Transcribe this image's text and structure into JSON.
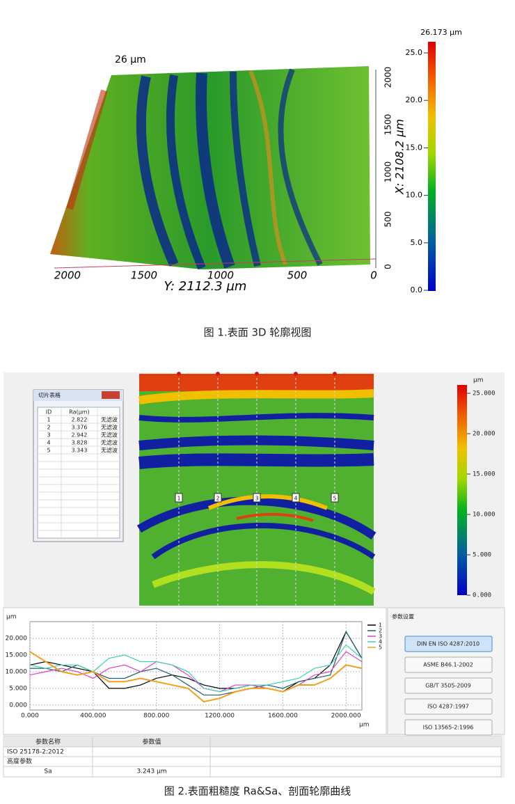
{
  "figure1": {
    "surface_labels": {
      "z_max": "26 µm",
      "y_axis_title": "Y: 2112.3 µm",
      "x_axis_title": "X: 2108.2 µm",
      "y_ticks": [
        "2000",
        "1500",
        "1000",
        "500",
        "0"
      ],
      "x_ticks": [
        "0",
        "500",
        "1000",
        "1500",
        "2000"
      ]
    },
    "colorbar": {
      "max_label": "26.173 µm",
      "ticks": [
        "0.0",
        "5.0",
        "10.0",
        "15.0",
        "20.0",
        "25.0"
      ]
    },
    "caption": "图 1.表面 3D 轮廓视图"
  },
  "figure2": {
    "slice_table": {
      "title": "切片表格",
      "columns": [
        "ID",
        "Ra(µm)"
      ],
      "rows": [
        [
          "1",
          "2.822",
          "无滤波"
        ],
        [
          "2",
          "3.376",
          "无滤波"
        ],
        [
          "3",
          "2.942",
          "无滤波"
        ],
        [
          "4",
          "3.828",
          "无滤波"
        ],
        [
          "5",
          "3.343",
          "无滤波"
        ]
      ]
    },
    "slice_markers": [
      "1",
      "2",
      "3",
      "4",
      "5"
    ],
    "colorbar": {
      "unit": "µm",
      "ticks": [
        "0.000",
        "5.000",
        "10.000",
        "15.000",
        "20.000",
        "25.000"
      ]
    },
    "chart_data": {
      "type": "line",
      "y_unit": "µm",
      "x_unit": "µm",
      "x": [
        0,
        100,
        200,
        300,
        400,
        500,
        600,
        700,
        800,
        900,
        1000,
        1100,
        1200,
        1300,
        1400,
        1500,
        1600,
        1700,
        1800,
        1900,
        2000,
        2100
      ],
      "series": [
        {
          "name": "1",
          "color": "#000000",
          "values": [
            12,
            13,
            12,
            11,
            10,
            5,
            5,
            6,
            8,
            9,
            8,
            6,
            5,
            5,
            6,
            5,
            4,
            7,
            8,
            12,
            22,
            14
          ]
        },
        {
          "name": "2",
          "color": "#1f5f6f",
          "values": [
            11,
            11,
            10,
            12,
            10,
            8,
            8,
            10,
            11,
            9,
            6,
            3,
            3,
            4,
            5,
            6,
            5,
            7,
            8,
            9,
            22,
            14
          ]
        },
        {
          "name": "3",
          "color": "#e040c0",
          "values": [
            9,
            10,
            11,
            10,
            8,
            11,
            12,
            10,
            13,
            12,
            9,
            5,
            4,
            6,
            6,
            5,
            4,
            6,
            9,
            10,
            16,
            13
          ]
        },
        {
          "name": "4",
          "color": "#40d0b0",
          "values": [
            12,
            11,
            12,
            12,
            10,
            14,
            15,
            13,
            13,
            12,
            10,
            5,
            4,
            5,
            6,
            6,
            7,
            8,
            11,
            12,
            18,
            14
          ]
        },
        {
          "name": "5",
          "color": "#f0a020",
          "values": [
            16,
            13,
            10,
            9,
            10,
            7,
            7,
            8,
            7,
            6,
            5,
            1,
            2,
            4,
            5,
            5,
            4,
            6,
            6,
            8,
            12,
            11
          ]
        }
      ],
      "xlim": [
        0,
        2100
      ],
      "xticks": [
        {
          "value": 0,
          "label": "0.000"
        },
        {
          "value": 400,
          "label": "400.000"
        },
        {
          "value": 800,
          "label": "800.000"
        },
        {
          "value": 1200,
          "label": "1200.000"
        },
        {
          "value": 1600,
          "label": "1600.000"
        },
        {
          "value": 2000,
          "label": "2000.000"
        }
      ],
      "ylim": [
        -1.5,
        25
      ],
      "yticks": [
        {
          "value": 0,
          "label": "0.000"
        },
        {
          "value": 5,
          "label": "5.000"
        },
        {
          "value": 10,
          "label": "10.000"
        },
        {
          "value": 15,
          "label": "15.000"
        },
        {
          "value": 20,
          "label": "20.000"
        }
      ],
      "grid": true
    },
    "settings": {
      "title": "参数设置",
      "buttons": [
        "DIN EN ISO 4287:2010",
        "ASME B46.1-2002",
        "GB/T 3505-2009",
        "ISO 4287:1997",
        "ISO 13565-2:1996"
      ]
    },
    "params_table": {
      "headers": [
        "参数名称",
        "参数值"
      ],
      "rows": [
        [
          "ISO 25178-2:2012"
        ],
        [
          "高度参数"
        ],
        [
          "Sa",
          "3.243 µm"
        ]
      ]
    },
    "caption": "图 2.表面粗糙度 Ra&Sa、剖面轮廓曲线"
  }
}
